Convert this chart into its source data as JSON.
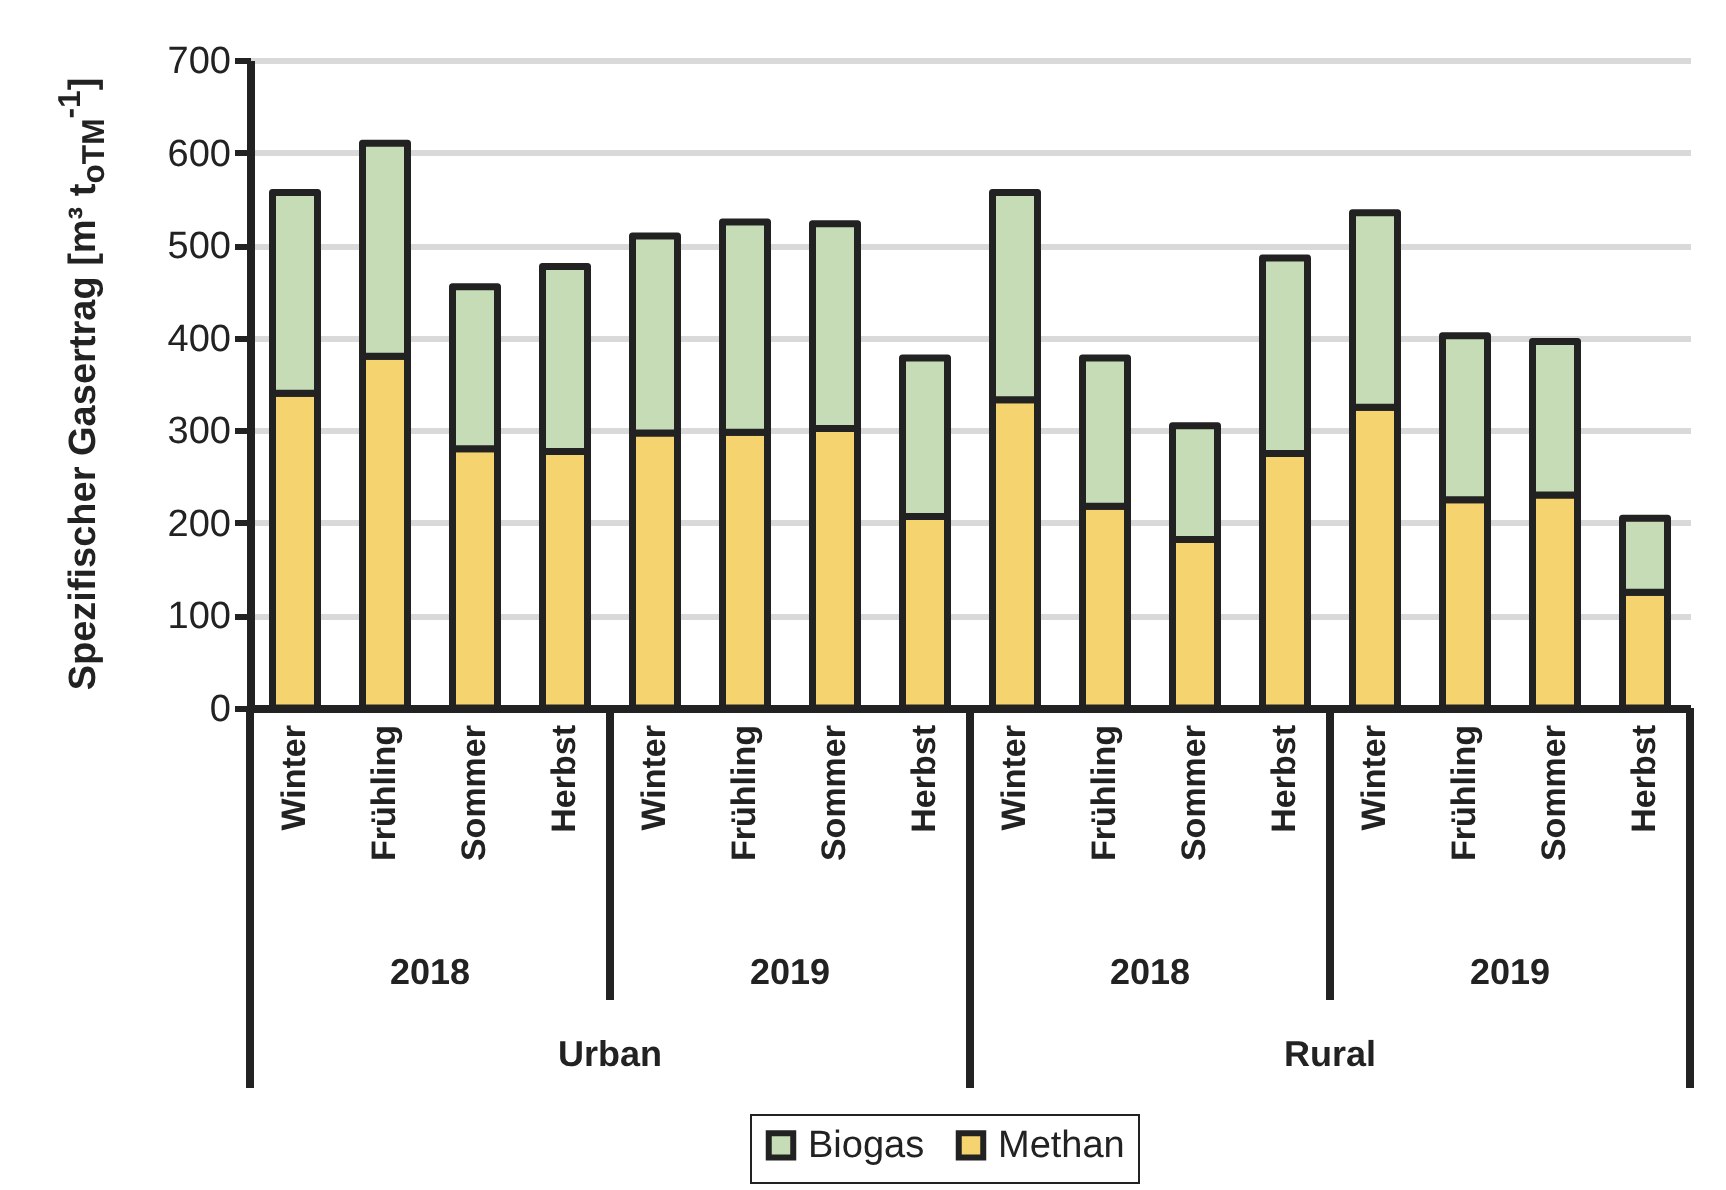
{
  "chart_data": {
    "type": "bar",
    "stacked": true,
    "ylabel": "Spezifischer Gasertrag [m³ t$_{oTM}$$^{-1}$]",
    "categories": [
      "Winter",
      "Frühling",
      "Sommer",
      "Herbst",
      "Winter",
      "Frühling",
      "Sommer",
      "Herbst",
      "Winter",
      "Frühling",
      "Sommer",
      "Herbst",
      "Winter",
      "Frühling",
      "Sommer",
      "Herbst"
    ],
    "series": [
      {
        "name": "Methan",
        "color": "#f5d470",
        "values": [
          340,
          380,
          280,
          277,
          297,
          298,
          302,
          207,
          333,
          218,
          182,
          275,
          325,
          225,
          230,
          125
        ]
      },
      {
        "name": "Biogas",
        "color": "#c6dcb6",
        "values": [
          217,
          230,
          175,
          200,
          213,
          227,
          221,
          171,
          224,
          160,
          123,
          211,
          210,
          177,
          166,
          80
        ]
      }
    ],
    "ylim": [
      0,
      700
    ],
    "yticks": [
      0,
      100,
      200,
      300,
      400,
      500,
      600,
      700
    ],
    "grid": "y",
    "legend": "bottom",
    "annotations": [
      "2018",
      "2019",
      "2018",
      "2019",
      "Urban",
      "Rural"
    ]
  }
}
